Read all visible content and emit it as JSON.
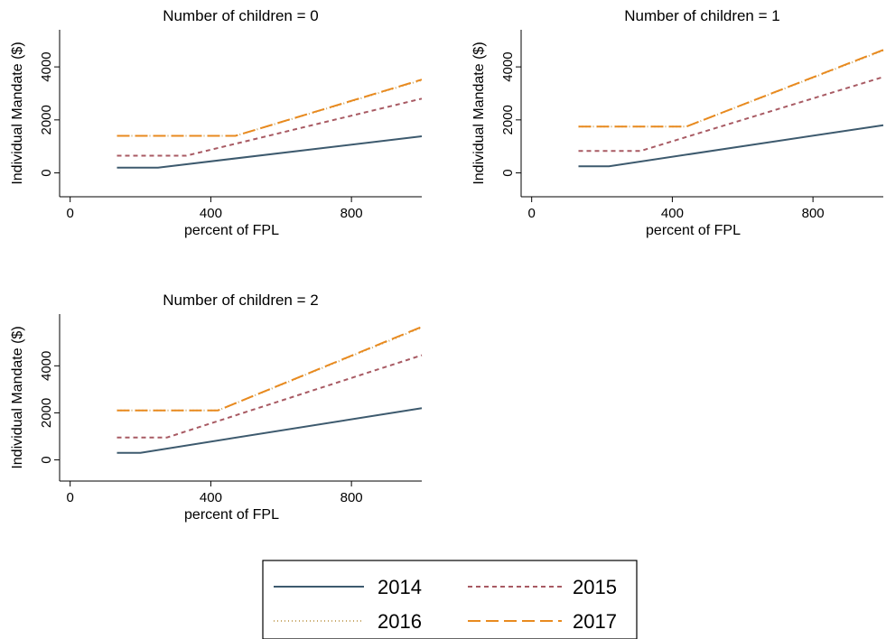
{
  "chart_data": {
    "type": "line",
    "xlabel": "percent of FPL",
    "ylabel": "Individual Mandate ($)",
    "x_ticks": [
      0,
      400,
      800
    ],
    "y_ticks": [
      0,
      2000,
      4000
    ],
    "grid": false,
    "legend_position": "bottom",
    "legend": [
      {
        "name": "2014",
        "color": "#3d5a6e",
        "dash": "solid"
      },
      {
        "name": "2015",
        "color": "#a85a63",
        "dash": "short-dash"
      },
      {
        "name": "2016",
        "color": "#c9a96a",
        "dash": "dotted"
      },
      {
        "name": "2017",
        "color": "#e88a1f",
        "dash": "long-dash"
      }
    ],
    "panels": [
      {
        "title": "Number of children = 0",
        "xlim": [
          -30,
          1000
        ],
        "ylim": [
          -900,
          5400
        ],
        "series": [
          {
            "name": "2014",
            "x": [
              133,
              250,
              1000
            ],
            "y": [
              200,
              200,
              1380
            ]
          },
          {
            "name": "2015",
            "x": [
              133,
              330,
              1000
            ],
            "y": [
              650,
              650,
              2800
            ]
          },
          {
            "name": "2016",
            "x": [
              133,
              470,
              1000
            ],
            "y": [
              1400,
              1400,
              3500
            ]
          },
          {
            "name": "2017",
            "x": [
              133,
              470,
              1000
            ],
            "y": [
              1400,
              1400,
              3520
            ]
          }
        ]
      },
      {
        "title": "Number of children = 1",
        "xlim": [
          -30,
          1000
        ],
        "ylim": [
          -900,
          5400
        ],
        "series": [
          {
            "name": "2014",
            "x": [
              133,
              220,
              1000
            ],
            "y": [
              250,
              250,
              1800
            ]
          },
          {
            "name": "2015",
            "x": [
              133,
              310,
              1000
            ],
            "y": [
              830,
              830,
              3620
            ]
          },
          {
            "name": "2016",
            "x": [
              133,
              440,
              1000
            ],
            "y": [
              1750,
              1750,
              4620
            ]
          },
          {
            "name": "2017",
            "x": [
              133,
              440,
              1000
            ],
            "y": [
              1750,
              1750,
              4640
            ]
          }
        ]
      },
      {
        "title": "Number of children = 2",
        "xlim": [
          -30,
          1000
        ],
        "ylim": [
          -900,
          6200
        ],
        "series": [
          {
            "name": "2014",
            "x": [
              133,
              200,
              1000
            ],
            "y": [
              300,
              300,
              2200
            ]
          },
          {
            "name": "2015",
            "x": [
              133,
              275,
              1000
            ],
            "y": [
              950,
              950,
              4450
            ]
          },
          {
            "name": "2016",
            "x": [
              133,
              420,
              1000
            ],
            "y": [
              2100,
              2100,
              5630
            ]
          },
          {
            "name": "2017",
            "x": [
              133,
              420,
              1000
            ],
            "y": [
              2100,
              2100,
              5660
            ]
          }
        ]
      }
    ]
  }
}
